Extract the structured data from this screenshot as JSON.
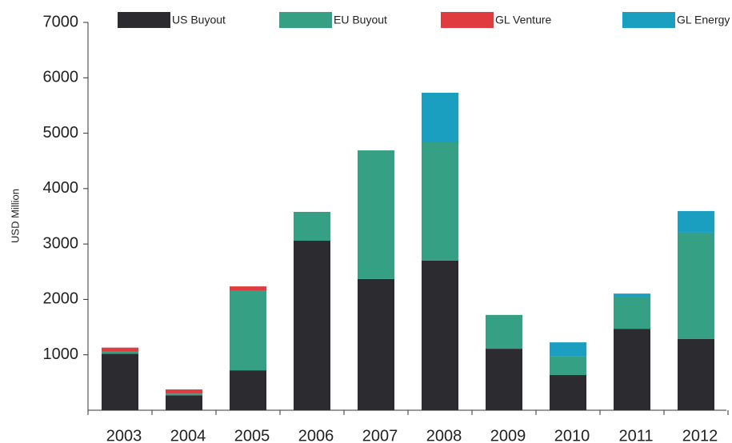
{
  "chart_data": {
    "type": "stacked_bar",
    "y_label": "USD Million",
    "categories": [
      "2003",
      "2004",
      "2005",
      "2006",
      "2007",
      "2008",
      "2009",
      "2010",
      "2011",
      "2012"
    ],
    "series": [
      {
        "name": "US Buyout",
        "color": "#2b2b30",
        "values": [
          1020,
          270,
          720,
          3060,
          2370,
          2700,
          1110,
          635,
          1470,
          1285
        ]
      },
      {
        "name": "EU Buyout",
        "color": "#36a085",
        "values": [
          40,
          30,
          1445,
          520,
          2320,
          2135,
          610,
          345,
          580,
          1920
        ]
      },
      {
        "name": "GL Venture",
        "color": "#e03c3f",
        "values": [
          70,
          75,
          70,
          0,
          0,
          0,
          0,
          0,
          0,
          0
        ]
      },
      {
        "name": "GL Energy",
        "color": "#1a9fc0",
        "values": [
          0,
          0,
          0,
          0,
          0,
          895,
          0,
          245,
          55,
          390
        ]
      }
    ],
    "ylim": [
      0,
      7000
    ],
    "yticks": [
      1000,
      2000,
      3000,
      4000,
      5000,
      6000,
      7000
    ],
    "grid": false
  }
}
